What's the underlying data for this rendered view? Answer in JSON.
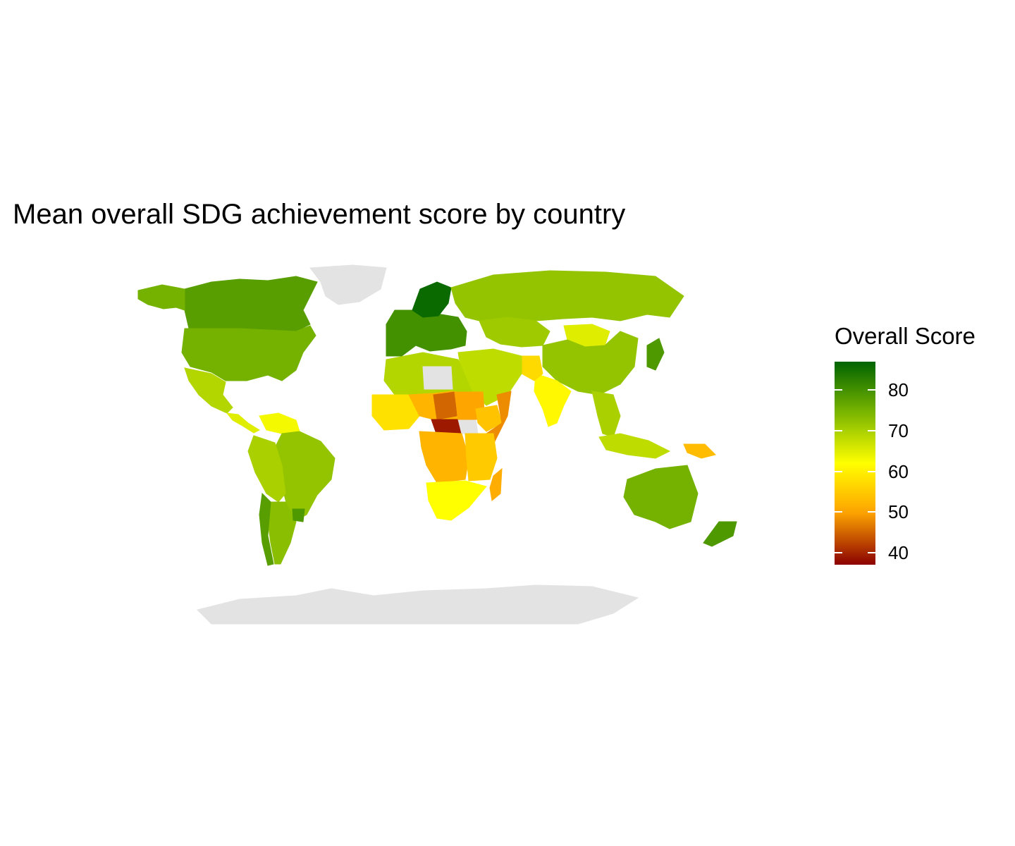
{
  "title": "Mean overall SDG achievement score by country",
  "legend": {
    "title": "Overall Score",
    "min": 37,
    "max": 87,
    "ticks": [
      "40",
      "50",
      "60",
      "70",
      "80"
    ],
    "tick_values": [
      40,
      50,
      60,
      70,
      80
    ],
    "colors": {
      "low": "#8b0000",
      "mid_low": "#ffa500",
      "mid": "#ffff00",
      "mid_high": "#7fb800",
      "high": "#006400"
    }
  },
  "map": {
    "no_data_color": "#e3e3e3",
    "regions": [
      {
        "name": "Canada",
        "score": 78
      },
      {
        "name": "United States",
        "score": 75
      },
      {
        "name": "Alaska",
        "score": 75
      },
      {
        "name": "Greenland",
        "score": null
      },
      {
        "name": "Mexico",
        "score": 69
      },
      {
        "name": "Central America",
        "score": 65
      },
      {
        "name": "Venezuela",
        "score": 63
      },
      {
        "name": "Brazil",
        "score": 72
      },
      {
        "name": "Peru/Bolivia",
        "score": 70
      },
      {
        "name": "Argentina",
        "score": 73
      },
      {
        "name": "Chile",
        "score": 78
      },
      {
        "name": "Uruguay",
        "score": 79
      },
      {
        "name": "Europe",
        "score": 80
      },
      {
        "name": "Scandinavia",
        "score": 86
      },
      {
        "name": "Russia",
        "score": 72
      },
      {
        "name": "Kazakhstan",
        "score": 71
      },
      {
        "name": "Mongolia",
        "score": 65
      },
      {
        "name": "China",
        "score": 72
      },
      {
        "name": "Japan",
        "score": 79
      },
      {
        "name": "India",
        "score": 61
      },
      {
        "name": "Pakistan",
        "score": 57
      },
      {
        "name": "Middle East",
        "score": 68
      },
      {
        "name": "Southeast Asia",
        "score": 70
      },
      {
        "name": "Indonesia",
        "score": 68
      },
      {
        "name": "Papua New Guinea",
        "score": 53
      },
      {
        "name": "Australia",
        "score": 75
      },
      {
        "name": "New Zealand",
        "score": 79
      },
      {
        "name": "North Africa",
        "score": 69
      },
      {
        "name": "Libya",
        "score": null
      },
      {
        "name": "West Africa",
        "score": 58
      },
      {
        "name": "Sahel",
        "score": 52
      },
      {
        "name": "Chad",
        "score": 45
      },
      {
        "name": "Central African Republic",
        "score": 39
      },
      {
        "name": "South Sudan",
        "score": null
      },
      {
        "name": "Sudan",
        "score": 50
      },
      {
        "name": "Ethiopia",
        "score": 54
      },
      {
        "name": "Somalia",
        "score": 48
      },
      {
        "name": "Congo Basin",
        "score": 52
      },
      {
        "name": "East Africa",
        "score": 55
      },
      {
        "name": "Southern Africa",
        "score": 62
      },
      {
        "name": "Madagascar",
        "score": 51
      },
      {
        "name": "Antarctica",
        "score": null
      }
    ]
  }
}
